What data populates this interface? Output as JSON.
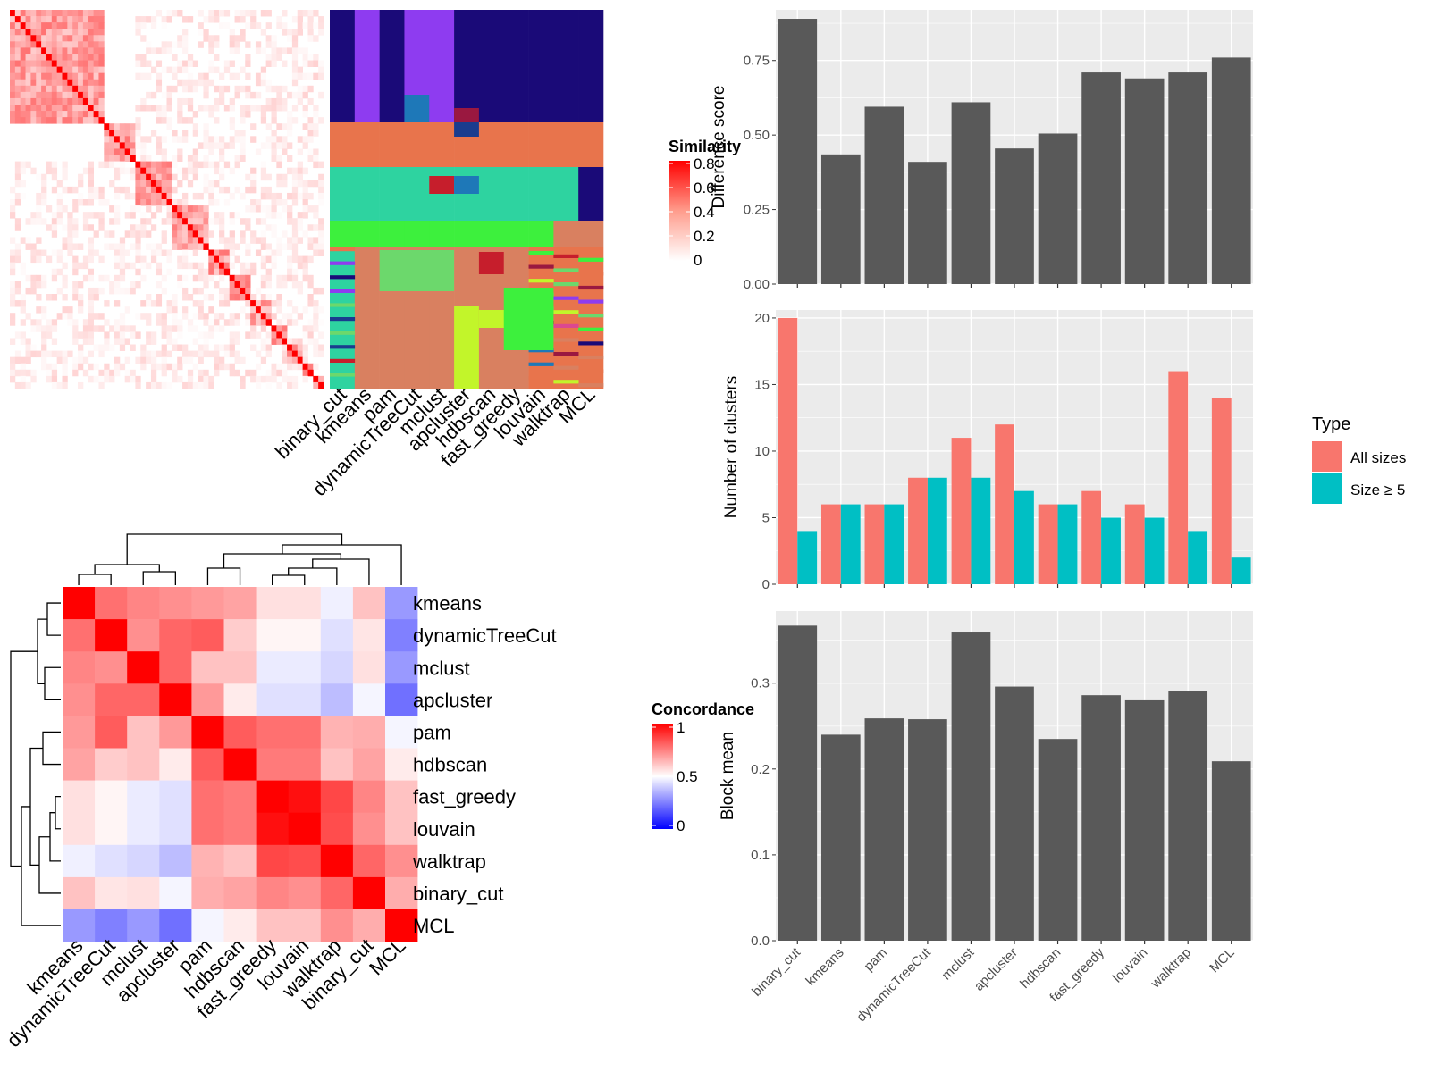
{
  "methods": [
    "binary_cut",
    "kmeans",
    "pam",
    "dynamicTreeCut",
    "mclust",
    "apcluster",
    "hdbscan",
    "fast_greedy",
    "louvain",
    "walktrap",
    "MCL"
  ],
  "legends": {
    "similarity": {
      "title": "Similarity",
      "ticks": [
        "0.8",
        "0.6",
        "0.4",
        "0.2",
        "0"
      ]
    },
    "concordance": {
      "title": "Concordance",
      "ticks": [
        "1",
        "0.5",
        "0"
      ]
    },
    "type": {
      "title": "Type",
      "items": [
        "All sizes",
        "Size ≥ 5"
      ]
    }
  },
  "colors": {
    "all_sizes": "#F8766D",
    "size_ge_5": "#00BFC4",
    "bar": "#595959",
    "panel_bg": "#EBEBEB",
    "heat_high": "#FF0000",
    "heat_low": "#0000FF"
  },
  "cluster_palette": [
    "#1A0A78",
    "#8E3CF0",
    "#E8744C",
    "#2ED3A0",
    "#3DF03D",
    "#C61E2C",
    "#1E78B8",
    "#C2F52A",
    "#6CD86C",
    "#D98060",
    "#9A1840",
    "#1A3C8E",
    "#1EAAB4",
    "#DC4890"
  ],
  "chart_data": [
    {
      "type": "heatmap",
      "title": "",
      "description_source": "similarity matrix (top-left)",
      "legend": "Similarity",
      "vmin": 0,
      "vmax": 0.8
    },
    {
      "type": "heatmap",
      "title": "",
      "description_source": "cluster assignment per method (top-middle)",
      "columns": [
        "binary_cut",
        "kmeans",
        "pam",
        "dynamicTreeCut",
        "mclust",
        "apcluster",
        "hdbscan",
        "fast_greedy",
        "louvain",
        "walktrap",
        "MCL"
      ]
    },
    {
      "type": "heatmap",
      "title": "",
      "legend": "Concordance",
      "rows": [
        "kmeans",
        "dynamicTreeCut",
        "mclust",
        "apcluster",
        "pam",
        "hdbscan",
        "fast_greedy",
        "louvain",
        "walktrap",
        "binary_cut",
        "MCL"
      ],
      "columns": [
        "kmeans",
        "dynamicTreeCut",
        "mclust",
        "apcluster",
        "pam",
        "hdbscan",
        "fast_greedy",
        "louvain",
        "walktrap",
        "binary_cut",
        "MCL"
      ],
      "values": [
        [
          1.0,
          0.78,
          0.74,
          0.72,
          0.7,
          0.68,
          0.56,
          0.56,
          0.47,
          0.62,
          0.3
        ],
        [
          0.78,
          1.0,
          0.72,
          0.8,
          0.82,
          0.6,
          0.52,
          0.52,
          0.44,
          0.55,
          0.25
        ],
        [
          0.74,
          0.72,
          1.0,
          0.8,
          0.62,
          0.62,
          0.46,
          0.46,
          0.42,
          0.56,
          0.3
        ],
        [
          0.72,
          0.8,
          0.8,
          1.0,
          0.7,
          0.54,
          0.44,
          0.44,
          0.37,
          0.48,
          0.22
        ],
        [
          0.7,
          0.82,
          0.62,
          0.7,
          1.0,
          0.82,
          0.78,
          0.78,
          0.65,
          0.66,
          0.48
        ],
        [
          0.68,
          0.6,
          0.62,
          0.54,
          0.82,
          1.0,
          0.76,
          0.76,
          0.62,
          0.68,
          0.54
        ],
        [
          0.56,
          0.52,
          0.46,
          0.44,
          0.78,
          0.76,
          1.0,
          0.97,
          0.86,
          0.74,
          0.62
        ],
        [
          0.56,
          0.52,
          0.46,
          0.44,
          0.78,
          0.76,
          0.97,
          1.0,
          0.85,
          0.72,
          0.62
        ],
        [
          0.47,
          0.44,
          0.42,
          0.37,
          0.65,
          0.62,
          0.86,
          0.85,
          1.0,
          0.8,
          0.72
        ],
        [
          0.62,
          0.55,
          0.56,
          0.48,
          0.66,
          0.68,
          0.74,
          0.72,
          0.8,
          1.0,
          0.66
        ],
        [
          0.3,
          0.25,
          0.3,
          0.22,
          0.48,
          0.54,
          0.62,
          0.62,
          0.72,
          0.66,
          1.0
        ]
      ],
      "vmin": 0,
      "vmax": 1
    },
    {
      "type": "bar",
      "title": "",
      "ylabel": "Difference score",
      "categories": [
        "binary_cut",
        "kmeans",
        "pam",
        "dynamicTreeCut",
        "mclust",
        "apcluster",
        "hdbscan",
        "fast_greedy",
        "louvain",
        "walktrap",
        "MCL"
      ],
      "values": [
        0.89,
        0.435,
        0.595,
        0.41,
        0.61,
        0.455,
        0.505,
        0.71,
        0.69,
        0.71,
        0.76
      ],
      "ylim": [
        0,
        0.92
      ],
      "yticks": [
        "0.00",
        "0.25",
        "0.50",
        "0.75"
      ],
      "show_x_labels": false
    },
    {
      "type": "bar",
      "title": "",
      "ylabel": "Number of clusters",
      "categories": [
        "binary_cut",
        "kmeans",
        "pam",
        "dynamicTreeCut",
        "mclust",
        "apcluster",
        "hdbscan",
        "fast_greedy",
        "louvain",
        "walktrap",
        "MCL"
      ],
      "series": [
        {
          "name": "All sizes",
          "values": [
            20,
            6,
            6,
            8,
            11,
            12,
            6,
            7,
            6,
            16,
            14
          ]
        },
        {
          "name": "Size ≥ 5",
          "values": [
            4,
            6,
            6,
            8,
            8,
            7,
            6,
            5,
            5,
            4,
            2
          ]
        }
      ],
      "ylim": [
        0,
        20.6
      ],
      "yticks": [
        "0",
        "5",
        "10",
        "15",
        "20"
      ],
      "legend_position": "right",
      "show_x_labels": false
    },
    {
      "type": "bar",
      "title": "",
      "ylabel": "Block mean",
      "categories": [
        "binary_cut",
        "kmeans",
        "pam",
        "dynamicTreeCut",
        "mclust",
        "apcluster",
        "hdbscan",
        "fast_greedy",
        "louvain",
        "walktrap",
        "MCL"
      ],
      "values": [
        0.367,
        0.24,
        0.259,
        0.258,
        0.359,
        0.296,
        0.235,
        0.286,
        0.28,
        0.291,
        0.209
      ],
      "ylim": [
        0,
        0.384
      ],
      "yticks": [
        "0.0",
        "0.1",
        "0.2",
        "0.3"
      ],
      "show_x_labels": true
    }
  ]
}
